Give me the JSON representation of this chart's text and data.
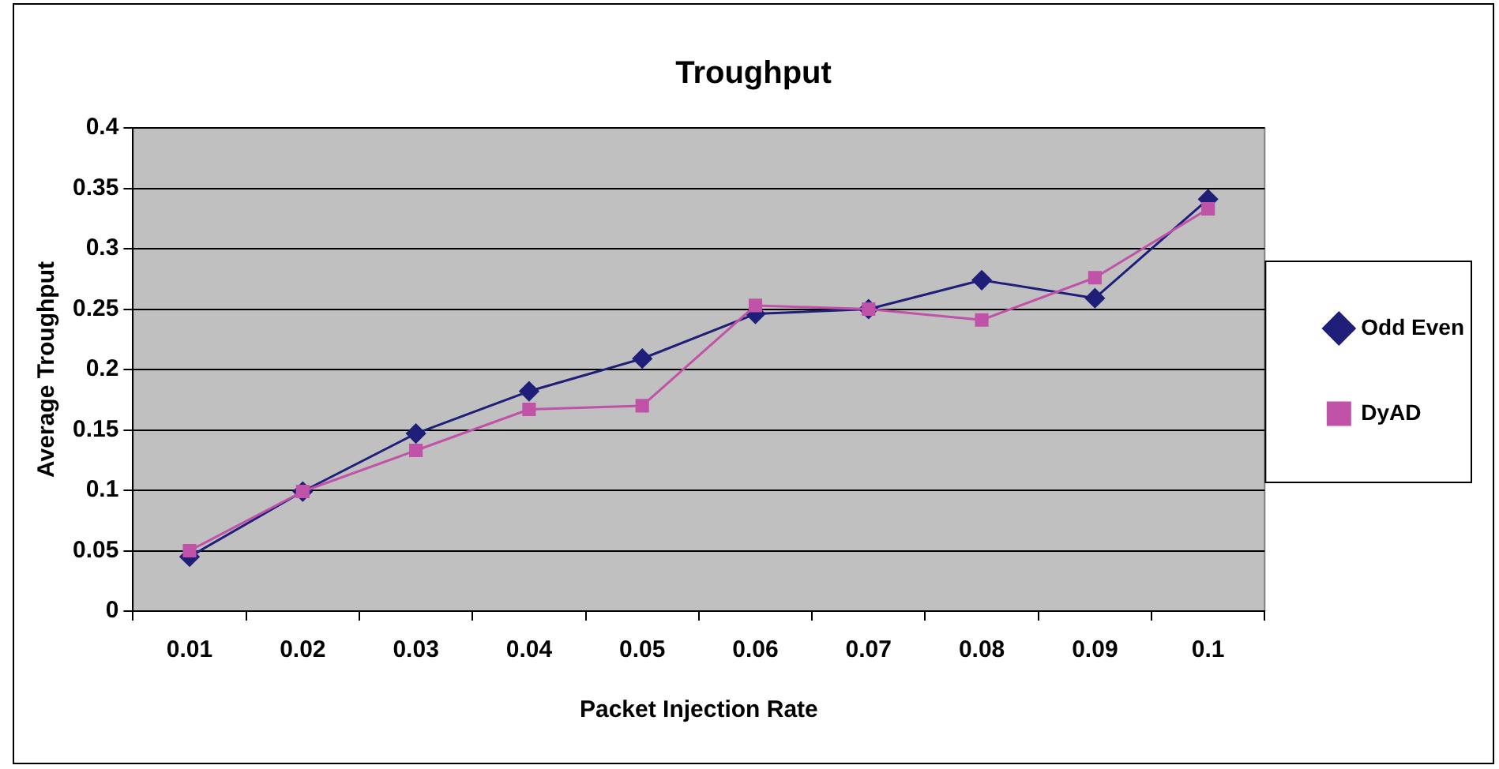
{
  "chart_data": {
    "type": "line",
    "title": "Troughput",
    "xlabel": "Packet Injection Rate",
    "ylabel": "Average Troughput",
    "categories": [
      "0.01",
      "0.02",
      "0.03",
      "0.04",
      "0.05",
      "0.06",
      "0.07",
      "0.08",
      "0.09",
      "0.1"
    ],
    "series": [
      {
        "name": "Odd Even",
        "color": "#1f1f7a",
        "marker": "diamond",
        "values": [
          0.045,
          0.099,
          0.147,
          0.182,
          0.209,
          0.246,
          0.25,
          0.274,
          0.259,
          0.341
        ]
      },
      {
        "name": "DyAD",
        "color": "#c052a8",
        "marker": "square",
        "values": [
          0.05,
          0.099,
          0.133,
          0.167,
          0.17,
          0.253,
          0.25,
          0.241,
          0.276,
          0.333
        ]
      }
    ],
    "ylim": [
      0,
      0.4
    ],
    "yticks": [
      0,
      0.05,
      0.1,
      0.15,
      0.2,
      0.25,
      0.3,
      0.35,
      0.4
    ],
    "grid": "y",
    "legend": "right",
    "line_style": "solid"
  }
}
